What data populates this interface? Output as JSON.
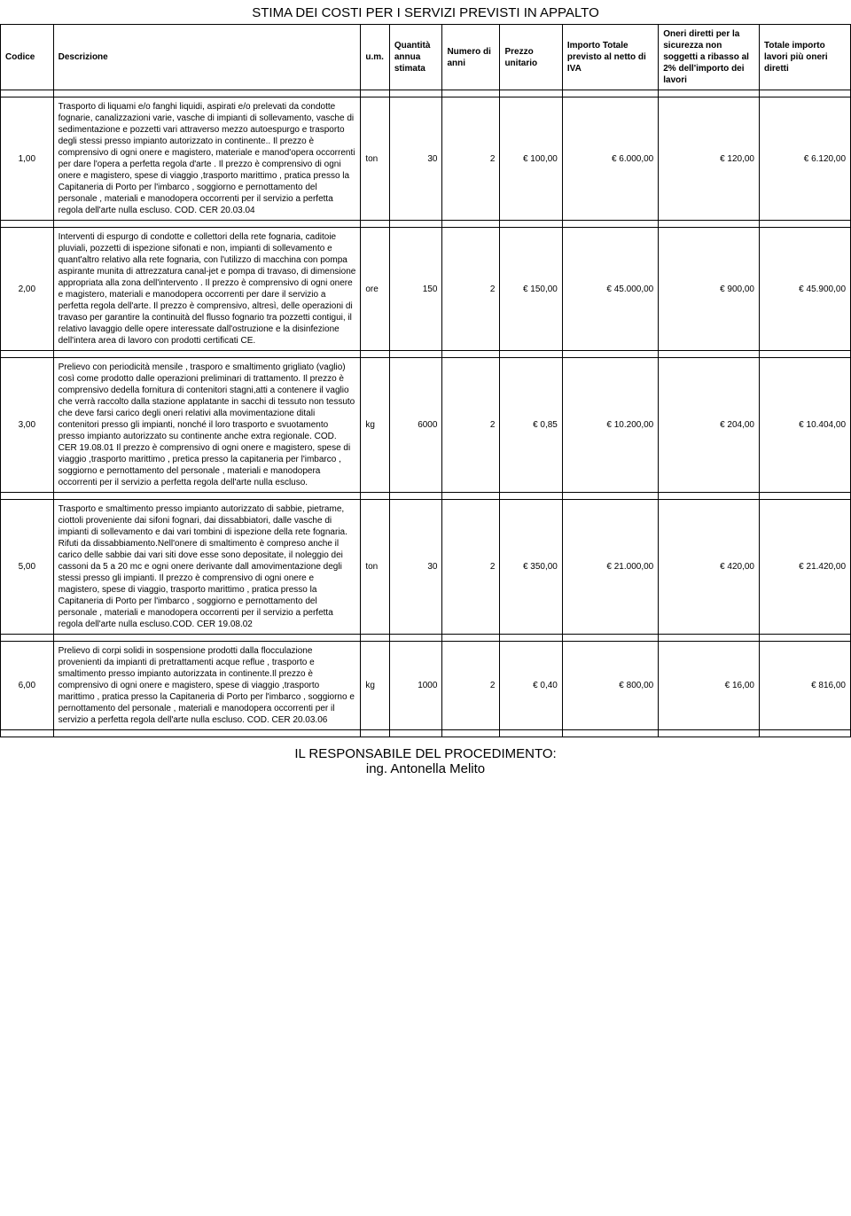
{
  "title": "STIMA DEI COSTI PER I SERVIZI PREVISTI IN APPALTO",
  "headers": {
    "codice": "Codice",
    "descrizione": "Descrizione",
    "um": "u.m.",
    "quantita": "Quantità annua stimata",
    "numero_anni": "Numero di anni",
    "prezzo": "Prezzo unitario",
    "importo_netto": "Importo Totale previsto  al netto di IVA",
    "oneri": "Oneri diretti per la sicurezza non soggetti a ribasso al 2% dell'importo dei lavori",
    "totale": "Totale importo lavori più oneri diretti"
  },
  "rows": [
    {
      "codice": "1,00",
      "descrizione": "Trasporto di liquami e/o fanghi liquidi, aspirati e/o prelevati da condotte fognarie, canalizzazioni varie, vasche di impianti di sollevamento, vasche di sedimentazione e pozzetti vari attraverso mezzo autoespurgo e trasporto degli stessi presso impianto autorizzato in continente.. Il prezzo è comprensivo di ogni onere e magistero, materiale e manod'opera occorrenti per dare l'opera a perfetta regola d'arte . Il prezzo è comprensivo di ogni onere e magistero, spese di viaggio ,trasporto marittimo , pratica presso la Capitaneria di Porto  per l'imbarco , soggiorno e pernottamento del personale , materiali e manodopera occorrenti per il servizio a perfetta regola dell'arte nulla escluso. COD. CER 20.03.04",
      "um": "ton",
      "quantita": "30",
      "anni": "2",
      "prezzo": "€ 100,00",
      "netto": "€ 6.000,00",
      "oneri": "€ 120,00",
      "totale": "€ 6.120,00"
    },
    {
      "codice": "2,00",
      "descrizione": "Interventi di espurgo  di condotte e collettori della rete fognaria, caditoie pluviali, pozzetti di ispezione sifonati e non, impianti di sollevamento e quant'altro relativo alla rete fognaria, con l'utilizzo di macchina con  pompa aspirante munita di attrezzatura canal-jet  e pompa di travaso, di dimensione appropriata alla zona dell'intervento . Il prezzo è comprensivo di ogni onere e magistero, materiali  e manodopera occorrenti per dare il servizio a perfetta regola dell'arte. Il prezzo è comprensivo, altresì, delle operazioni di travaso per garantire la continuità del flusso fognario tra pozzetti contigui, il relativo lavaggio delle opere interessate dall'ostruzione e la disinfezione dell'intera area di lavoro con prodotti certificati CE.",
      "um": "ore",
      "quantita": "150",
      "anni": "2",
      "prezzo": "€ 150,00",
      "netto": "€ 45.000,00",
      "oneri": "€ 900,00",
      "totale": "€ 45.900,00"
    },
    {
      "codice": "3,00",
      "descrizione": "Prelievo con periodicità mensile , trasporo e smaltimento grigliato (vaglio) così come prodotto dalle operazioni preliminari di trattamento. Il prezzo è comprensivo dedella fornitura di contenitori stagni,atti a contenere il vaglio che verrà raccolto dalla stazione applatante in sacchi di tessuto non tessuto  che deve farsi carico degli oneri  relativi alla movimentazione ditali contenitori presso gli impianti, nonché  il loro trasporto e svuotamento presso impianto autorizzato su continente anche extra regionale. COD. CER 19.08.01 Il prezzo è comprensivo di ogni onere e magistero, spese di viaggio ,trasporto marittimo , pretica presso la capitaneria per l'imbarco , soggiorno e pernottamento del personale , materiali e manodopera occorrenti per il servizio a perfetta regola dell'arte nulla escluso.",
      "um": "kg",
      "quantita": "6000",
      "anni": "2",
      "prezzo": "€ 0,85",
      "netto": "€ 10.200,00",
      "oneri": "€ 204,00",
      "totale": "€ 10.404,00"
    },
    {
      "codice": "5,00",
      "descrizione": " Trasporto e smaltimento presso impianto autorizzato di sabbie, pietrame, ciottoli proveniente dai sifoni fognari, dai dissabbiatori, dalle vasche di impianti di sollevamento e dai vari tombini di ispezione della rete fognaria. Rifuti da dissabbiamento.Nell'onere di smaltimento è compreso anche il carico delle sabbie dai vari siti  dove esse sono depositate, il noleggio dei cassoni da 5 a 20 mc e ogni onere derivante dall amovimentazione degli stessi presso gli impianti. Il prezzo è comprensivo di ogni onere e magistero, spese di viaggio, trasporto marittimo , pratica presso la Capitaneria di Porto per l'imbarco , soggiorno e pernottamento del personale , materiali e manodopera occorrenti per il servizio a perfetta regola dell'arte nulla escluso.COD. CER 19.08.02",
      "um": "ton",
      "quantita": "30",
      "anni": "2",
      "prezzo": "€ 350,00",
      "netto": "€ 21.000,00",
      "oneri": "€ 420,00",
      "totale": "€ 21.420,00"
    },
    {
      "codice": "6,00",
      "descrizione": "Prelievo di corpi solidi in sospensione prodotti dalla flocculazione  provenienti da impianti di pretrattamenti acque reflue , trasporto e smaltimento presso impianto autorizzata in continente.Il prezzo è comprensivo di ogni onere e magistero, spese di viaggio ,trasporto marittimo , pratica presso la Capitaneria di Porto per l'imbarco , soggiorno e pernottamento del personale , materiali e manodopera occorrenti per il servizio a perfetta regola dell'arte nulla escluso. COD. CER 20.03.06",
      "um": "kg",
      "quantita": "1000",
      "anni": "2",
      "prezzo": "€ 0,40",
      "netto": "€ 800,00",
      "oneri": "€ 16,00",
      "totale": "€ 816,00"
    }
  ],
  "footer": {
    "line1": "IL RESPONSABILE DEL PROCEDIMENTO:",
    "line2": "ing. Antonella Melito"
  }
}
